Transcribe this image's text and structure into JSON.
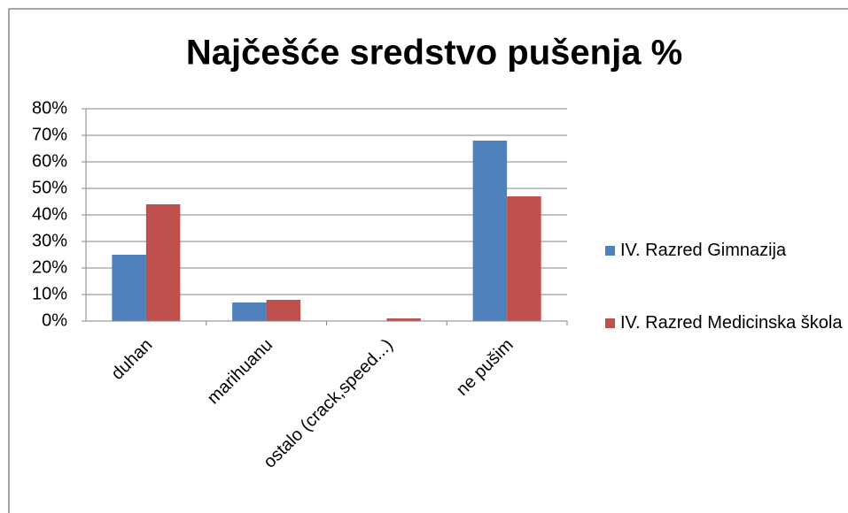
{
  "chart_data": {
    "type": "bar",
    "title": "Najčešće sredstvo pušenja %",
    "categories": [
      "duhan",
      "marihuanu",
      "ostalo (crack,speed...)",
      "ne pušim"
    ],
    "series": [
      {
        "name": "IV. Razred Gimnazija",
        "color": "#4f81bd",
        "values": [
          25,
          7,
          0,
          68
        ]
      },
      {
        "name": "IV. Razred Medicinska škola",
        "color": "#c0504d",
        "values": [
          44,
          8,
          1,
          47
        ]
      }
    ],
    "ylim": [
      0,
      80
    ],
    "yticks": [
      {
        "value": 0,
        "label": "0%"
      },
      {
        "value": 10,
        "label": "10%"
      },
      {
        "value": 20,
        "label": "20%"
      },
      {
        "value": 30,
        "label": "30%"
      },
      {
        "value": 40,
        "label": "40%"
      },
      {
        "value": 50,
        "label": "50%"
      },
      {
        "value": 60,
        "label": "60%"
      },
      {
        "value": 70,
        "label": "70%"
      },
      {
        "value": 80,
        "label": "80%"
      }
    ],
    "grid": true,
    "legend": "right"
  }
}
